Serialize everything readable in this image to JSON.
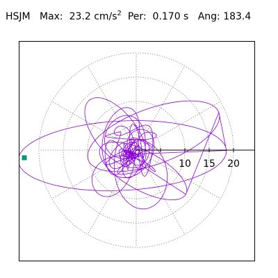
{
  "header": {
    "station": "HSJM",
    "max_label": "Max:",
    "max_value": "23.2",
    "max_unit": "cm/s",
    "max_unit_exp": "2",
    "period_label": "Per:",
    "period_value": "0.170 s",
    "angle_label": "Ang:",
    "angle_value": "183.4"
  },
  "chart_data": {
    "type": "polar",
    "title": "",
    "radial_ticks": [
      5,
      10,
      15,
      20
    ],
    "radial_tick_labels": [
      "10",
      "15",
      "20"
    ],
    "angular_gridlines_deg": [
      0,
      30,
      60,
      90,
      120,
      150,
      180,
      210,
      240,
      270,
      300,
      330
    ],
    "grid": true,
    "grid_style": "dotted",
    "max_amplitude": 23.2,
    "max_direction_deg": 183.4,
    "series": [
      {
        "values_note": "",
        "color": "#8a00d4"
      }
    ],
    "marker": {
      "shape": "square",
      "color": "#009977",
      "angle_deg": 180,
      "radius": 23.2
    }
  },
  "colors": {
    "trace": "#8a00d4",
    "grid": "#888888",
    "axis": "#000000",
    "marker": "#009977"
  }
}
